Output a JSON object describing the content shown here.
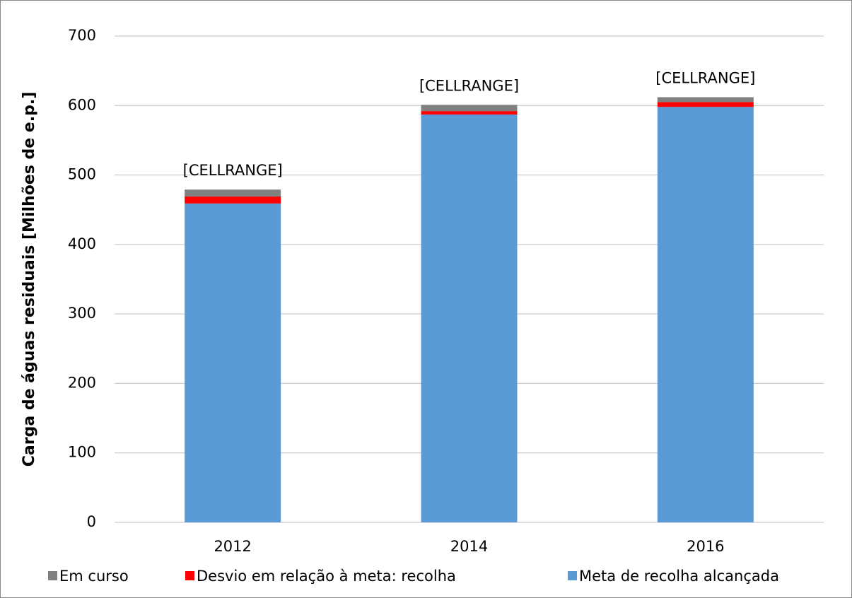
{
  "chart_data": {
    "type": "stacked_bar",
    "y_label": "Carga de águas residuais [Milhões de e.p.]",
    "categories": [
      "2012",
      "2014",
      "2016"
    ],
    "series": [
      {
        "name": "Meta de recolha alcançada",
        "color": "#5b9bd5",
        "values": [
          459,
          587,
          598
        ]
      },
      {
        "name": "Desvio em relação à meta: recolha",
        "color": "#ff0000",
        "values": [
          10,
          5,
          7
        ]
      },
      {
        "name": "Em curso",
        "color": "#808080",
        "values": [
          10,
          9,
          7
        ]
      }
    ],
    "data_labels": [
      "[CELLRANGE]",
      "[CELLRANGE]",
      "[CELLRANGE]"
    ],
    "ylim": [
      0,
      700
    ],
    "yticks": [
      0,
      100,
      200,
      300,
      400,
      500,
      600,
      700
    ],
    "grid": true
  }
}
